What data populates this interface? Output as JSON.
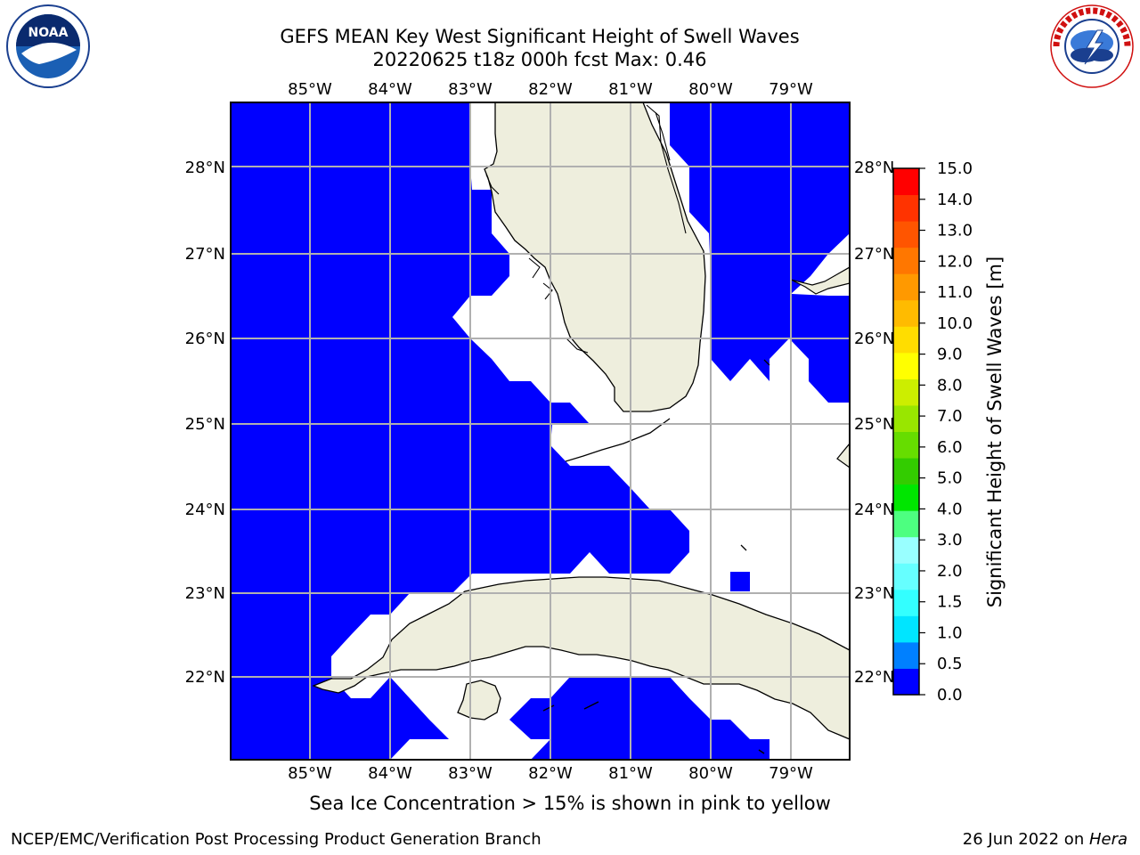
{
  "header": {
    "title_line1": "GEFS MEAN Key West Significant Height of Swell Waves",
    "title_line2": "20220625 t18z 000h fcst   Max: 0.46"
  },
  "logos": {
    "noaa": {
      "icon": "noaa-logo",
      "text": "NOAA",
      "ring_text": "NATIONAL OCEANIC AND ATMOSPHERIC ADMINISTRATION · U.S. DEPARTMENT OF COMMERCE"
    },
    "nws": {
      "icon": "nws-logo",
      "ring_text": "NATIONAL WEATHER SERVICE"
    }
  },
  "map": {
    "region": "Key West",
    "lon_ticks": [
      "85°W",
      "84°W",
      "83°W",
      "82°W",
      "81°W",
      "80°W",
      "79°W"
    ],
    "lat_ticks": [
      "28°N",
      "27°N",
      "26°N",
      "25°N",
      "24°N",
      "23°N",
      "22°N"
    ],
    "colors": {
      "ocean_swell": "#0000ff",
      "no_data": "#ffffff",
      "land": "#eeeedd",
      "grid": "#b0b0b0"
    }
  },
  "colorbar": {
    "label": "Significant Height of Swell Waves [m]",
    "ticks": [
      "15.0",
      "14.0",
      "13.0",
      "12.0",
      "11.0",
      "10.0",
      "9.0",
      "8.0",
      "7.0",
      "6.0",
      "5.0",
      "4.0",
      "3.0",
      "2.0",
      "1.5",
      "1.0",
      "0.5",
      "0.0"
    ],
    "colors": [
      "#0000ff",
      "#0080ff",
      "#00e5ff",
      "#33ffff",
      "#66ffff",
      "#99ffff",
      "#4dff80",
      "#00e600",
      "#33cc00",
      "#66dd00",
      "#99e600",
      "#ccee00",
      "#ffff00",
      "#ffdd00",
      "#ffbb00",
      "#ff9900",
      "#ff7700",
      "#ff5500",
      "#ff3300",
      "#ff0000"
    ]
  },
  "notes": {
    "sea_ice": "Sea Ice Concentration > 15% is shown in pink to yellow"
  },
  "footer": {
    "left": "NCEP/EMC/Verification Post Processing Product Generation Branch",
    "right_date": "26 Jun 2022 on ",
    "right_host": "Hera"
  }
}
